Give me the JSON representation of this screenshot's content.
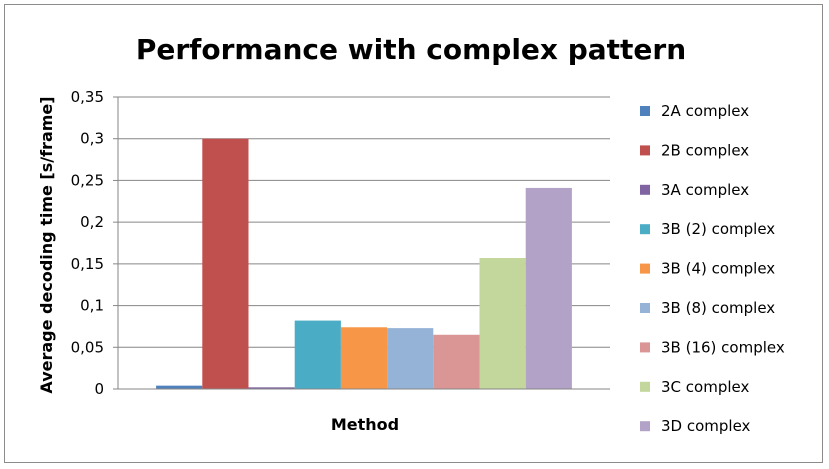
{
  "chart_data": {
    "type": "bar",
    "title": "Performance with complex pattern",
    "xlabel": "Method",
    "ylabel": "Average decoding time [s/frame]",
    "ylim": [
      0,
      0.35
    ],
    "yticks": [
      "0",
      "0,05",
      "0,1",
      "0,15",
      "0,2",
      "0,25",
      "0,3",
      "0,35"
    ],
    "grid": true,
    "legend_position": "right",
    "series": [
      {
        "name": "2A complex",
        "value": 0.004,
        "color": "#4f81bd"
      },
      {
        "name": "2B complex",
        "value": 0.3,
        "color": "#c0504d"
      },
      {
        "name": "3A complex",
        "value": 0.002,
        "color": "#8064a2"
      },
      {
        "name": "3B (2) complex",
        "value": 0.082,
        "color": "#4bacc6"
      },
      {
        "name": "3B (4) complex",
        "value": 0.074,
        "color": "#f79646"
      },
      {
        "name": "3B (8) complex",
        "value": 0.073,
        "color": "#95b3d7"
      },
      {
        "name": "3B (16) complex",
        "value": 0.065,
        "color": "#d99694"
      },
      {
        "name": "3C complex",
        "value": 0.157,
        "color": "#c3d69b"
      },
      {
        "name": "3D complex",
        "value": 0.241,
        "color": "#b2a2c7"
      }
    ]
  }
}
